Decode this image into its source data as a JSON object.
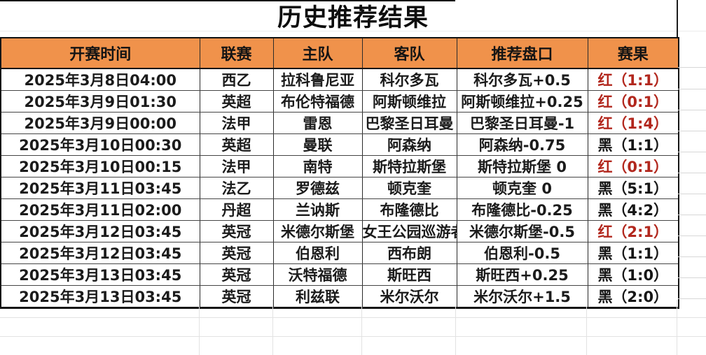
{
  "title": "历史推荐结果",
  "colors": {
    "header_bg": "#F0924B",
    "result_red": "#B2271D",
    "result_black": "#161616"
  },
  "table": {
    "headers": [
      "开赛时间",
      "联赛",
      "主队",
      "客队",
      "推荐盘口",
      "赛果"
    ],
    "rows": [
      {
        "time": "2025年3月8日04:00",
        "league": "西乙",
        "home": "拉科鲁尼亚",
        "away": "科尔多瓦",
        "handicap": "科尔多瓦+0.5",
        "result": "红（1:1）",
        "result_color": "red"
      },
      {
        "time": "2025年3月9日01:30",
        "league": "英超",
        "home": "布伦特福德",
        "away": "阿斯顿维拉",
        "handicap": "阿斯顿维拉+0.25",
        "result": "红（0:1）",
        "result_color": "red"
      },
      {
        "time": "2025年3月9日00:00",
        "league": "法甲",
        "home": "雷恩",
        "away": "巴黎圣日耳曼",
        "handicap": "巴黎圣日耳曼-1",
        "result": "红（1:4）",
        "result_color": "red"
      },
      {
        "time": "2025年3月10日00:30",
        "league": "英超",
        "home": "曼联",
        "away": "阿森纳",
        "handicap": "阿森纳-0.75",
        "result": "黑（1:1）",
        "result_color": "black"
      },
      {
        "time": "2025年3月10日00:15",
        "league": "法甲",
        "home": "南特",
        "away": "斯特拉斯堡",
        "handicap": "斯特拉斯堡 0",
        "result": "红（0:1）",
        "result_color": "red"
      },
      {
        "time": "2025年3月11日03:45",
        "league": "法乙",
        "home": "罗德兹",
        "away": "顿克奎",
        "handicap": "顿克奎 0",
        "result": "黑（5:1）",
        "result_color": "black"
      },
      {
        "time": "2025年3月11日02:00",
        "league": "丹超",
        "home": "兰讷斯",
        "away": "布隆德比",
        "handicap": "布隆德比-0.25",
        "result": "黑（4:2）",
        "result_color": "black"
      },
      {
        "time": "2025年3月12日03:45",
        "league": "英冠",
        "home": "米德尔斯堡",
        "away": "女王公园巡游者",
        "handicap": "米德尔斯堡-0.5",
        "result": "红（2:1）",
        "result_color": "red"
      },
      {
        "time": "2025年3月12日03:45",
        "league": "英冠",
        "home": "伯恩利",
        "away": "西布朗",
        "handicap": "伯恩利-0.5",
        "result": "黑（1:1）",
        "result_color": "black"
      },
      {
        "time": "2025年3月13日03:45",
        "league": "英冠",
        "home": "沃特福德",
        "away": "斯旺西",
        "handicap": "斯旺西+0.25",
        "result": "黑（1:0）",
        "result_color": "black"
      },
      {
        "time": "2025年3月13日03:45",
        "league": "英冠",
        "home": "利兹联",
        "away": "米尔沃尔",
        "handicap": "米尔沃尔+1.5",
        "result": "黑（2:0）",
        "result_color": "black"
      }
    ]
  }
}
